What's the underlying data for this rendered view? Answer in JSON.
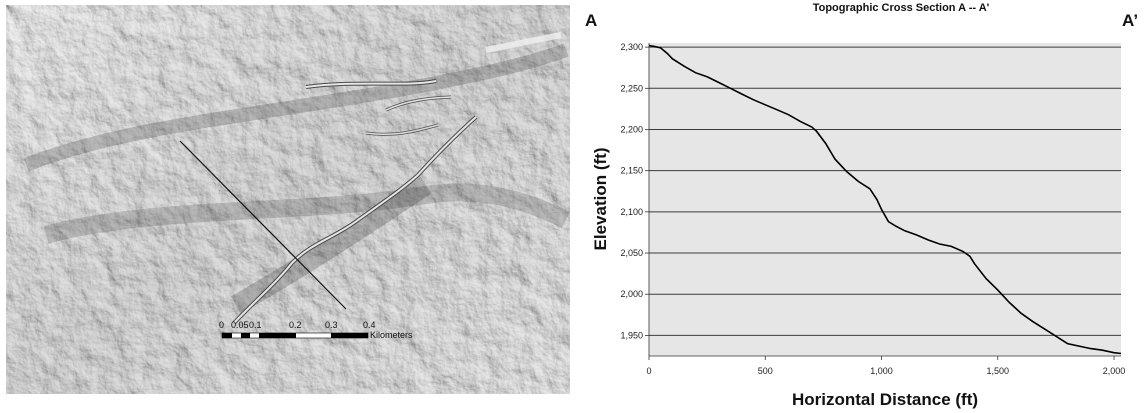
{
  "map": {
    "scale_bar": {
      "ticks": [
        "0",
        "0.05",
        "0.1",
        "0.2",
        "0.3",
        "0.4"
      ],
      "unit": "Kilometers"
    },
    "section_line": {
      "start_label": "A",
      "end_label": "A'"
    }
  },
  "chart_data": {
    "type": "line",
    "title": "Topographic Cross Section A -- A'",
    "start_label": "A",
    "end_label": "A’",
    "xlabel": "Horizontal Distance (ft)",
    "ylabel": "Elevation (ft)",
    "xlim": [
      0,
      2030
    ],
    "ylim": [
      1925,
      2305
    ],
    "x_ticks": [
      0,
      500,
      1000,
      1500,
      2000
    ],
    "x_tick_labels": [
      "0",
      "500",
      "1,000",
      "1,500",
      "2,000"
    ],
    "y_ticks": [
      1950,
      2000,
      2050,
      2100,
      2150,
      2200,
      2250,
      2300
    ],
    "y_tick_labels": [
      "1,950",
      "2,000",
      "2,050",
      "2,100",
      "2,150",
      "2,200",
      "2,250",
      "2,300"
    ],
    "grid": "horizontal",
    "series": [
      {
        "x": [
          0,
          20,
          50,
          80,
          100,
          150,
          200,
          250,
          300,
          350,
          400,
          450,
          500,
          550,
          600,
          650,
          700,
          720,
          760,
          800,
          850,
          900,
          950,
          980,
          1000,
          1030,
          1060,
          1100,
          1150,
          1200,
          1250,
          1300,
          1350,
          1380,
          1400,
          1450,
          1500,
          1550,
          1600,
          1650,
          1700,
          1750,
          1800,
          1850,
          1900,
          1950,
          2000,
          2030
        ],
        "y": [
          2302,
          2301,
          2299,
          2292,
          2286,
          2277,
          2269,
          2264,
          2257,
          2250,
          2243,
          2236,
          2230,
          2224,
          2218,
          2210,
          2203,
          2198,
          2183,
          2164,
          2149,
          2137,
          2128,
          2115,
          2103,
          2088,
          2083,
          2077,
          2072,
          2066,
          2061,
          2058,
          2052,
          2046,
          2037,
          2019,
          2005,
          1990,
          1977,
          1967,
          1958,
          1949,
          1940,
          1937,
          1934,
          1932,
          1929,
          1928
        ]
      }
    ]
  }
}
